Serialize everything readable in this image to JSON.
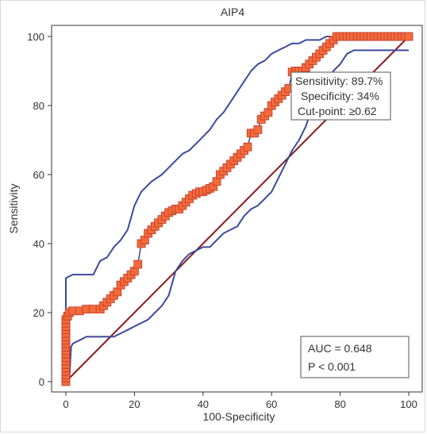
{
  "chart_data": {
    "type": "line",
    "title": "AIP4",
    "xlabel": "100-Specificity",
    "ylabel": "Sensitivity",
    "xlim": [
      0,
      100
    ],
    "ylim": [
      0,
      100
    ],
    "xticks": [
      0,
      20,
      40,
      60,
      80,
      100
    ],
    "yticks": [
      0,
      20,
      40,
      60,
      80,
      100
    ],
    "grid": false,
    "colors": {
      "roc": "#3a4a9c",
      "ci": "#3a4a9c",
      "diagonal": "#8b1a1a",
      "marker_fill": "#f26b3a",
      "marker_edge": "#c0392b"
    },
    "series": [
      {
        "role": "roc",
        "x": [
          0,
          0,
          0.5,
          1,
          2,
          4,
          6,
          8,
          10,
          11,
          12,
          13,
          14,
          15,
          16,
          17,
          18,
          19,
          20,
          21,
          22,
          23,
          24,
          25,
          26,
          27,
          28,
          29,
          30,
          31,
          32,
          33,
          34,
          35,
          36,
          37,
          38,
          39,
          40,
          41,
          42,
          43,
          44,
          45,
          46,
          47,
          48,
          49,
          50,
          51,
          52,
          53,
          54,
          55,
          56,
          57,
          58,
          59,
          60,
          61,
          62,
          63,
          64,
          65,
          66,
          67,
          68,
          69,
          70,
          71,
          72,
          73,
          74,
          75,
          76,
          77,
          78,
          79,
          80,
          81,
          82,
          84,
          86,
          88,
          90,
          92,
          94,
          96,
          98,
          100
        ],
        "y": [
          0,
          17,
          19,
          20,
          20.5,
          20.5,
          21,
          21,
          21,
          22,
          23,
          24,
          25,
          26,
          28,
          29,
          30,
          31,
          32,
          34,
          40,
          41,
          43,
          44,
          45,
          46,
          47,
          48,
          49,
          49.5,
          50,
          50,
          51,
          52,
          53,
          54,
          54.5,
          55,
          55,
          55.5,
          56,
          56.5,
          58,
          60,
          61,
          62,
          63,
          64,
          65,
          66,
          67,
          68,
          72,
          72,
          73,
          76,
          77,
          78,
          80,
          81,
          82,
          83,
          84,
          85,
          89.7,
          90,
          90,
          90,
          91,
          92,
          93,
          94,
          95,
          96,
          97,
          98,
          99,
          100,
          100,
          100,
          100,
          100,
          100,
          100,
          100,
          100,
          100,
          100,
          100,
          100
        ]
      },
      {
        "role": "ci-upper",
        "x": [
          0,
          0,
          2,
          5,
          8,
          10,
          12,
          14,
          16,
          18,
          20,
          22,
          25,
          28,
          30,
          32,
          34,
          36,
          38,
          40,
          42,
          44,
          46,
          48,
          50,
          52,
          54,
          56,
          58,
          60,
          62,
          64,
          66,
          68,
          70,
          72,
          74,
          76,
          78,
          80,
          82,
          85,
          90,
          95,
          100
        ],
        "y": [
          0,
          30,
          31,
          31,
          31,
          35,
          36,
          39,
          41,
          44,
          51,
          55,
          58,
          60,
          62,
          64,
          66,
          67,
          69,
          71,
          73,
          76,
          78,
          81,
          84,
          87,
          90,
          92,
          93,
          95,
          96,
          97,
          98,
          98,
          99,
          99,
          99,
          100,
          100,
          100,
          100,
          100,
          100,
          100,
          100
        ]
      },
      {
        "role": "ci-lower",
        "x": [
          0,
          1,
          1.5,
          2,
          4,
          6,
          8,
          10,
          12,
          14,
          16,
          18,
          20,
          22,
          24,
          26,
          28,
          30,
          32,
          34,
          36,
          38,
          40,
          42,
          44,
          46,
          48,
          50,
          52,
          54,
          56,
          58,
          60,
          62,
          64,
          66,
          68,
          70,
          72,
          74,
          76,
          78,
          80,
          82,
          84,
          86,
          88,
          90,
          92,
          94,
          96,
          98,
          100
        ],
        "y": [
          0,
          0,
          10,
          11,
          12,
          13,
          13,
          13,
          13,
          13,
          14,
          15,
          16,
          17,
          18,
          20,
          22,
          25,
          32,
          35,
          37,
          38,
          39,
          39,
          41,
          43,
          44,
          45,
          48,
          50,
          51,
          53,
          55,
          59,
          63,
          67,
          70,
          74,
          80,
          84,
          87,
          90,
          92,
          95,
          96,
          96,
          96,
          96,
          96,
          96,
          96,
          96,
          96
        ]
      },
      {
        "role": "reference",
        "x": [
          0,
          100
        ],
        "y": [
          0,
          100
        ]
      }
    ],
    "markers": {
      "x": [
        0,
        0,
        0,
        0,
        0,
        0,
        0,
        0,
        0,
        0,
        0,
        0,
        0,
        0,
        0,
        0,
        0,
        0,
        0,
        0.5,
        1,
        2,
        4,
        6,
        8,
        10,
        11,
        12,
        13,
        14,
        15,
        16,
        17,
        18,
        19,
        20,
        21,
        22,
        23,
        24,
        25,
        26,
        27,
        28,
        29,
        30,
        31,
        32,
        33,
        34,
        35,
        36,
        37,
        38,
        39,
        40,
        41,
        42,
        43,
        44,
        45,
        46,
        47,
        48,
        49,
        50,
        51,
        52,
        53,
        54,
        55,
        56,
        57,
        58,
        59,
        60,
        61,
        62,
        63,
        64,
        65,
        66,
        67,
        68,
        69,
        70,
        71,
        72,
        73,
        74,
        75,
        76,
        77,
        78,
        79,
        80,
        81,
        82,
        83,
        84,
        85,
        86,
        87,
        88,
        89,
        90,
        91,
        92,
        93,
        94,
        95,
        96,
        97,
        98,
        99,
        100
      ],
      "y": [
        0,
        1,
        2,
        3,
        4,
        5,
        6,
        7,
        8,
        9,
        10,
        11,
        12,
        13,
        14,
        15,
        16,
        17,
        18,
        19,
        20,
        20.5,
        20.5,
        21,
        21,
        21,
        22,
        23,
        24,
        25,
        26,
        28,
        29,
        30,
        31,
        32,
        34,
        40,
        41,
        43,
        44,
        45,
        46,
        47,
        48,
        49,
        49.5,
        50,
        50,
        51,
        52,
        53,
        54,
        54.5,
        55,
        55,
        55.5,
        56,
        56.5,
        58,
        60,
        61,
        62,
        63,
        64,
        65,
        66,
        67,
        68,
        72,
        72,
        73,
        76,
        77,
        78,
        80,
        81,
        82,
        83,
        84,
        85,
        89.7,
        90,
        90,
        90,
        91,
        92,
        93,
        94,
        95,
        96,
        97,
        98,
        99,
        100,
        100,
        100,
        100,
        100,
        100,
        100,
        100,
        100,
        100,
        100,
        100,
        100,
        100,
        100,
        100,
        100,
        100,
        100,
        100,
        100,
        100
      ]
    },
    "annotations": {
      "cutpoint": [
        "Sensitivity: 89.7%",
        "Specificity: 34%",
        "Cut-point: ≥0.62"
      ],
      "stats": [
        "AUC = 0.648",
        "P < 0.001"
      ]
    }
  }
}
